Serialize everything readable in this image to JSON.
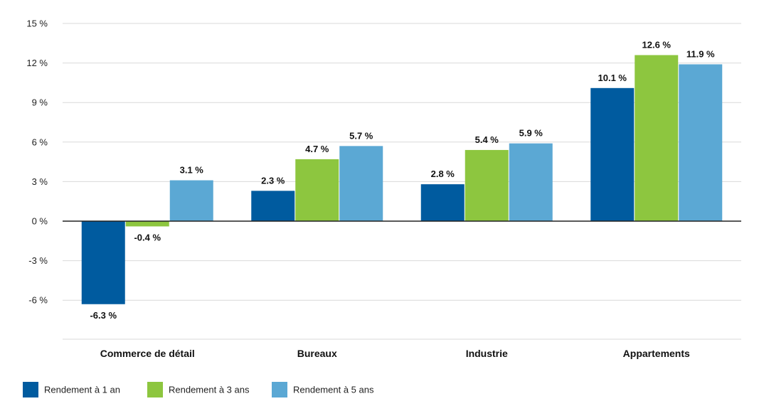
{
  "chart_data": {
    "type": "bar",
    "categories": [
      "Commerce de détail",
      "Bureaux",
      "Industrie",
      "Appartements"
    ],
    "series": [
      {
        "name": "Rendement à 1 an",
        "values": [
          -6.3,
          2.3,
          2.8,
          10.1
        ],
        "labels": [
          "-6.3  %",
          "2.3  %",
          "2.8  %",
          "10.1  %"
        ],
        "color": "#005b9f"
      },
      {
        "name": "Rendement à 3 ans",
        "values": [
          -0.4,
          4.7,
          5.4,
          12.6
        ],
        "labels": [
          "-0.4  %",
          "4.7  %",
          "5.4  %",
          "12.6  %"
        ],
        "color": "#8dc63f"
      },
      {
        "name": "Rendement à 5 ans",
        "values": [
          3.1,
          5.7,
          5.9,
          11.9
        ],
        "labels": [
          "3.1  %",
          "5.7  %",
          "5.9  %",
          "11.9  %"
        ],
        "color": "#5ba8d4"
      }
    ],
    "ylim": [
      -9,
      15
    ],
    "yticks": [
      15,
      12,
      9,
      6,
      3,
      0,
      -3,
      -6
    ],
    "ytick_labels": [
      "15 %",
      "12 %",
      "9 %",
      "6 %",
      "3 %",
      "0 %",
      "-3 %",
      "-6 %"
    ],
    "grid": true,
    "legend_position": "bottom-left"
  }
}
